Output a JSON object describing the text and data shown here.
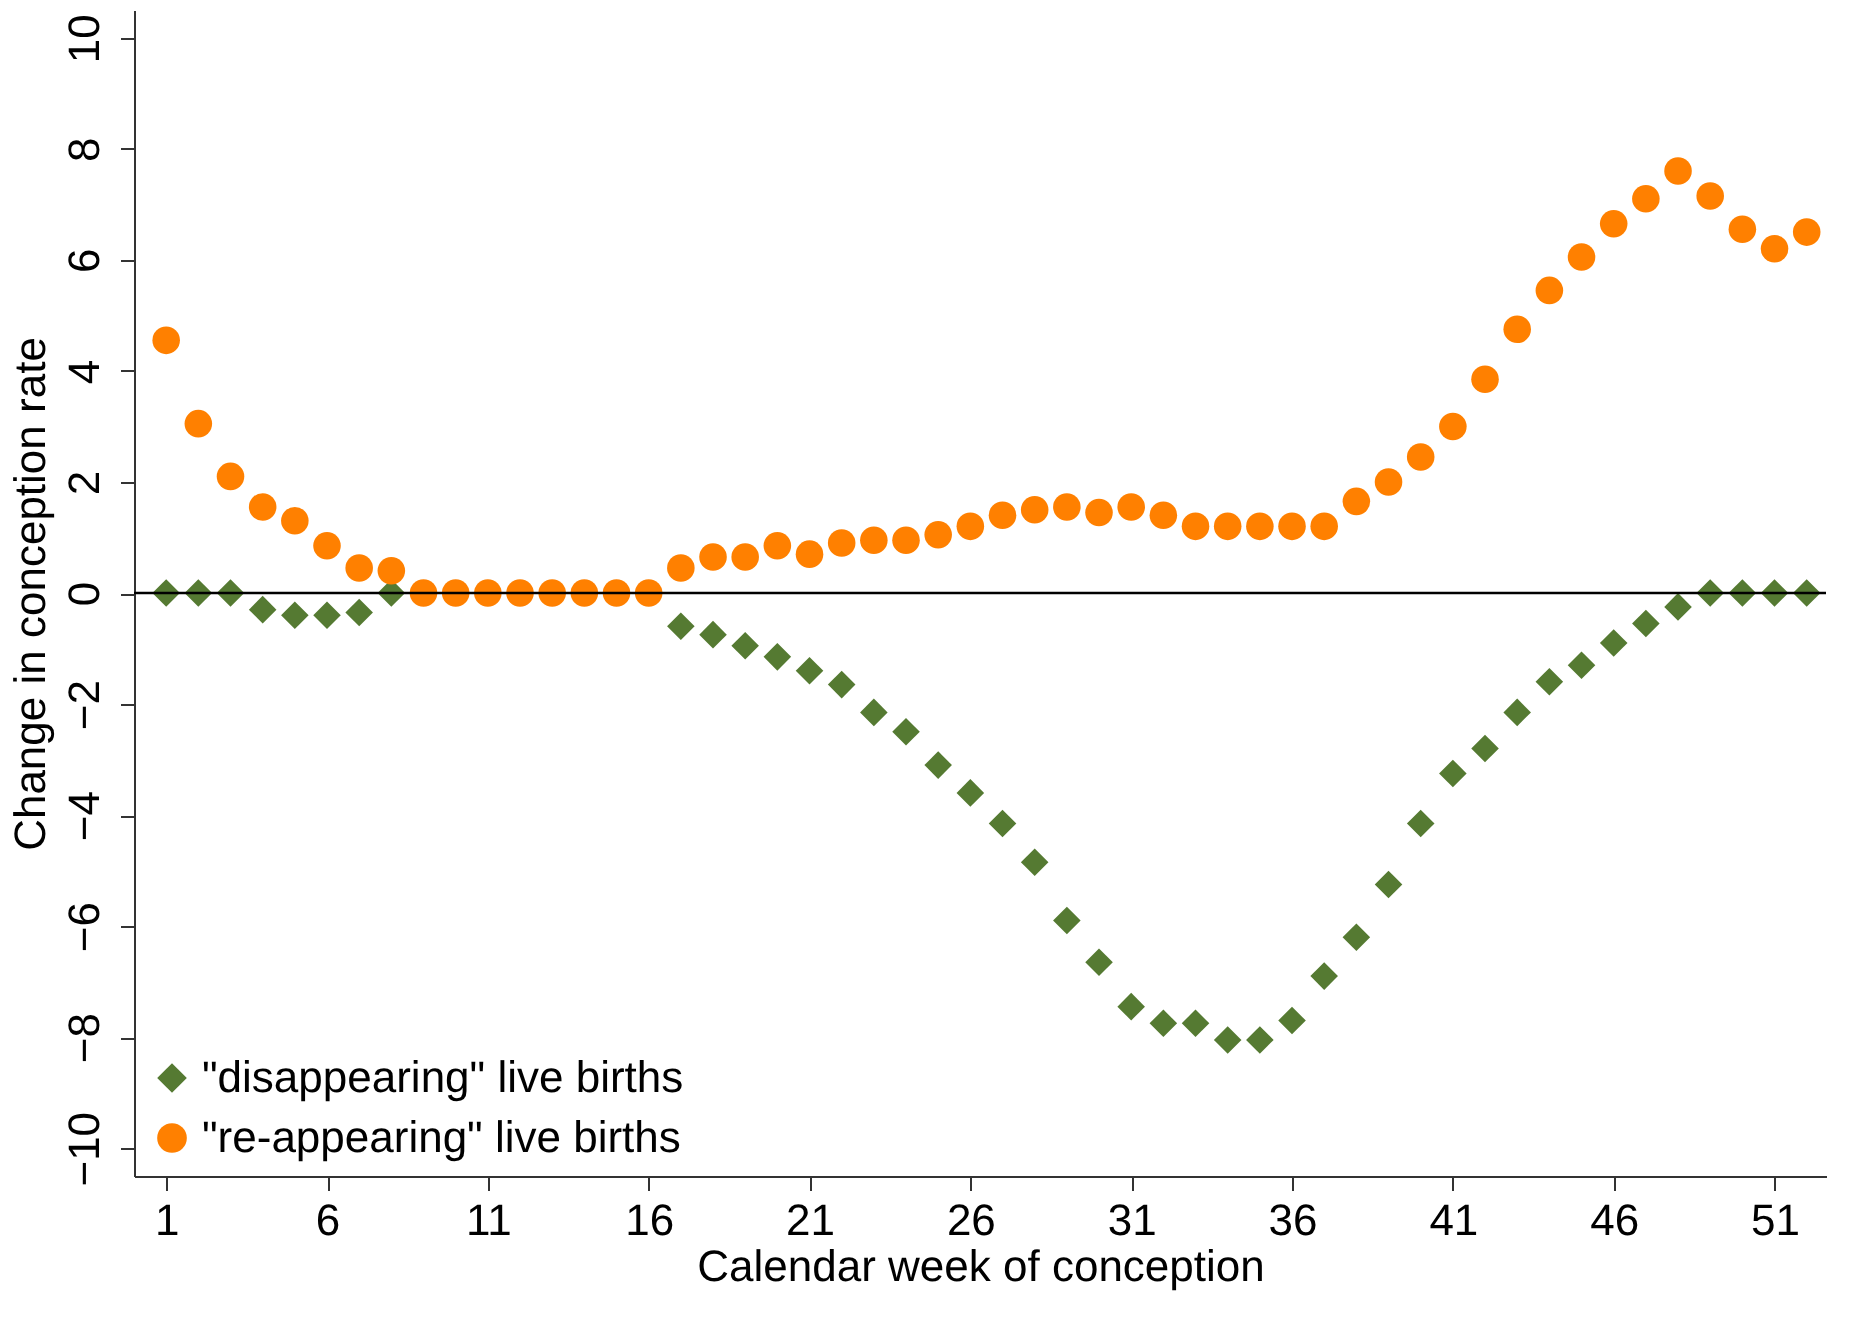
{
  "chart_data": {
    "type": "scatter",
    "xlabel": "Calendar week of conception",
    "ylabel": "Change in conception rate",
    "x": [
      1,
      2,
      3,
      4,
      5,
      6,
      7,
      8,
      9,
      10,
      11,
      12,
      13,
      14,
      15,
      16,
      17,
      18,
      19,
      20,
      21,
      22,
      23,
      24,
      25,
      26,
      27,
      28,
      29,
      30,
      31,
      32,
      33,
      34,
      35,
      36,
      37,
      38,
      39,
      40,
      41,
      42,
      43,
      44,
      45,
      46,
      47,
      48,
      49,
      50,
      51,
      52
    ],
    "series": [
      {
        "name": "\"disappearing\" live births",
        "color": "#557a32",
        "marker": "diamond",
        "values": [
          0,
          0,
          0,
          -0.3,
          -0.4,
          -0.4,
          -0.35,
          0,
          null,
          null,
          null,
          null,
          null,
          null,
          null,
          null,
          -0.6,
          -0.75,
          -0.95,
          -1.15,
          -1.4,
          -1.65,
          -2.15,
          -2.5,
          -3.1,
          -3.6,
          -4.15,
          -4.85,
          -5.9,
          -6.65,
          -7.45,
          -7.75,
          -7.75,
          -8.05,
          -8.05,
          -7.7,
          -6.9,
          -6.2,
          -5.25,
          -4.15,
          -3.25,
          -2.8,
          -2.15,
          -1.6,
          -1.3,
          -0.9,
          -0.55,
          -0.25,
          0,
          0,
          0,
          0
        ]
      },
      {
        "name": "\"re-appearing\" live births",
        "color": "#ff8000",
        "marker": "circle",
        "values": [
          4.55,
          3.05,
          2.1,
          1.55,
          1.3,
          0.85,
          0.45,
          0.4,
          0,
          0,
          0,
          0,
          0,
          0,
          0,
          0,
          0.45,
          0.65,
          0.65,
          0.85,
          0.7,
          0.9,
          0.95,
          0.95,
          1.05,
          1.2,
          1.4,
          1.5,
          1.55,
          1.45,
          1.55,
          1.4,
          1.2,
          1.2,
          1.2,
          1.2,
          1.2,
          1.65,
          2,
          2.45,
          3,
          3.85,
          4.75,
          5.45,
          6.05,
          6.65,
          7.1,
          7.6,
          7.15,
          6.55,
          6.2,
          6.5
        ]
      }
    ],
    "xlim": [
      0,
      52.6
    ],
    "xticks": [
      1,
      6,
      11,
      16,
      21,
      26,
      31,
      36,
      41,
      46,
      51
    ],
    "ylim": [
      -10.5,
      10.5
    ],
    "yticks": [
      -10,
      -8,
      -6,
      -4,
      -2,
      0,
      2,
      4,
      6,
      8,
      10
    ],
    "ref_lines": [
      {
        "axis": "y",
        "value": 0,
        "color": "#000000"
      }
    ],
    "grid": false,
    "legend": "bottom left"
  }
}
